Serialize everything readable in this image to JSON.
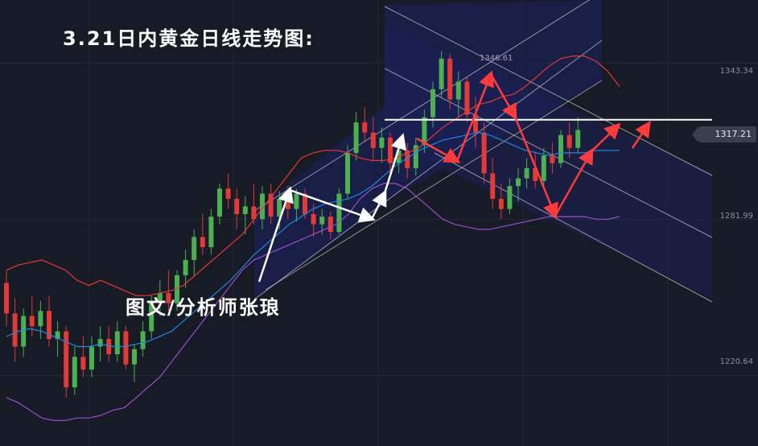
{
  "title": "3.21日内黄金日线走势图:",
  "author": "图文/分析师张琅",
  "colors": {
    "background": "#171b26",
    "up_candle": "#4caf50",
    "down_candle": "#e53935",
    "upper_band": "#e53935",
    "middle_band": "#1e88e5",
    "lower_band": "#9c4dcc",
    "white_arrow": "#ffffff",
    "red_arrow": "#ff3b3b",
    "channel_fill": "#1c2160"
  },
  "chart_data": {
    "type": "candlestick",
    "instrument": "黄金",
    "timeframe": "日线",
    "price_labels": [
      "1343.34",
      "1317.21",
      "1281.99",
      "1220.64"
    ],
    "current_price": "1317.21",
    "peak_label": "1346.61",
    "price_ticks": [
      1343.34,
      1281.99,
      1220.64
    ],
    "resistance_level": 1321,
    "ylim": [
      1193,
      1368
    ],
    "candles_ohlc": [
      [
        1257,
        1262,
        1240,
        1245
      ],
      [
        1245,
        1251,
        1226,
        1232
      ],
      [
        1232,
        1247,
        1228,
        1244
      ],
      [
        1244,
        1252,
        1236,
        1240
      ],
      [
        1240,
        1250,
        1235,
        1246
      ],
      [
        1246,
        1252,
        1232,
        1235
      ],
      [
        1235,
        1242,
        1228,
        1238
      ],
      [
        1238,
        1240,
        1212,
        1216
      ],
      [
        1216,
        1232,
        1213,
        1228
      ],
      [
        1228,
        1236,
        1220,
        1223
      ],
      [
        1223,
        1236,
        1220,
        1232
      ],
      [
        1232,
        1240,
        1226,
        1235
      ],
      [
        1235,
        1240,
        1226,
        1229
      ],
      [
        1229,
        1242,
        1226,
        1238
      ],
      [
        1238,
        1240,
        1223,
        1225
      ],
      [
        1225,
        1233,
        1218,
        1231
      ],
      [
        1231,
        1242,
        1228,
        1238
      ],
      [
        1238,
        1252,
        1235,
        1250
      ],
      [
        1250,
        1258,
        1244,
        1253
      ],
      [
        1253,
        1262,
        1246,
        1249
      ],
      [
        1249,
        1262,
        1246,
        1260
      ],
      [
        1260,
        1270,
        1255,
        1266
      ],
      [
        1266,
        1278,
        1260,
        1275
      ],
      [
        1275,
        1284,
        1268,
        1271
      ],
      [
        1271,
        1286,
        1268,
        1283
      ],
      [
        1283,
        1296,
        1280,
        1294
      ],
      [
        1294,
        1300,
        1286,
        1290
      ],
      [
        1290,
        1294,
        1278,
        1284
      ],
      [
        1284,
        1291,
        1276,
        1287
      ],
      [
        1287,
        1296,
        1280,
        1282
      ],
      [
        1282,
        1295,
        1278,
        1292
      ],
      [
        1292,
        1296,
        1280,
        1283
      ],
      [
        1283,
        1293,
        1278,
        1290
      ],
      [
        1290,
        1295,
        1282,
        1286
      ],
      [
        1286,
        1294,
        1281,
        1292
      ],
      [
        1292,
        1294,
        1282,
        1284
      ],
      [
        1284,
        1288,
        1275,
        1280
      ],
      [
        1280,
        1286,
        1276,
        1283
      ],
      [
        1283,
        1285,
        1274,
        1277
      ],
      [
        1277,
        1294,
        1276,
        1292
      ],
      [
        1292,
        1311,
        1290,
        1308
      ],
      [
        1308,
        1324,
        1305,
        1320
      ],
      [
        1320,
        1326,
        1312,
        1316
      ],
      [
        1316,
        1322,
        1305,
        1310
      ],
      [
        1310,
        1318,
        1304,
        1314
      ],
      [
        1314,
        1316,
        1300,
        1304
      ],
      [
        1304,
        1312,
        1300,
        1309
      ],
      [
        1309,
        1312,
        1298,
        1302
      ],
      [
        1302,
        1314,
        1299,
        1311
      ],
      [
        1311,
        1325,
        1308,
        1322
      ],
      [
        1322,
        1336,
        1318,
        1333
      ],
      [
        1333,
        1348,
        1330,
        1345
      ],
      [
        1345,
        1347,
        1325,
        1329
      ],
      [
        1329,
        1340,
        1322,
        1336
      ],
      [
        1336,
        1338,
        1320,
        1323
      ],
      [
        1323,
        1330,
        1310,
        1316
      ],
      [
        1316,
        1320,
        1296,
        1300
      ],
      [
        1300,
        1306,
        1286,
        1290
      ],
      [
        1290,
        1296,
        1282,
        1286
      ],
      [
        1286,
        1298,
        1284,
        1295
      ],
      [
        1295,
        1302,
        1289,
        1298
      ],
      [
        1298,
        1306,
        1294,
        1302
      ],
      [
        1302,
        1308,
        1294,
        1297
      ],
      [
        1297,
        1310,
        1294,
        1307
      ],
      [
        1307,
        1312,
        1300,
        1304
      ],
      [
        1304,
        1317,
        1302,
        1315
      ],
      [
        1315,
        1320,
        1306,
        1310
      ],
      [
        1310,
        1322,
        1308,
        1317
      ]
    ],
    "bollinger": {
      "upper": [
        1262,
        1264,
        1265,
        1266,
        1264,
        1262,
        1258,
        1256,
        1258,
        1256,
        1254,
        1252,
        1252,
        1253,
        1254,
        1256,
        1260,
        1264,
        1268,
        1272,
        1276,
        1282,
        1288,
        1294,
        1300,
        1306,
        1308,
        1309,
        1309,
        1308,
        1306,
        1305,
        1305,
        1306,
        1308,
        1310,
        1314,
        1318,
        1321,
        1324,
        1327,
        1328,
        1330,
        1331,
        1334,
        1338,
        1342,
        1345,
        1346,
        1346,
        1344,
        1340,
        1334
      ],
      "middle": [
        1236,
        1238,
        1239,
        1238,
        1236,
        1234,
        1232,
        1232,
        1233,
        1232,
        1232,
        1233,
        1234,
        1236,
        1238,
        1242,
        1246,
        1250,
        1254,
        1258,
        1263,
        1268,
        1272,
        1276,
        1280,
        1283,
        1286,
        1288,
        1289,
        1290,
        1292,
        1295,
        1299,
        1303,
        1306,
        1309,
        1311,
        1313,
        1314,
        1315,
        1316,
        1315,
        1313,
        1311,
        1309,
        1308,
        1307,
        1308,
        1308,
        1308,
        1309,
        1309,
        1309
      ],
      "lower": [
        1212,
        1210,
        1207,
        1204,
        1203,
        1203,
        1204,
        1204,
        1205,
        1207,
        1208,
        1212,
        1216,
        1220,
        1226,
        1232,
        1238,
        1244,
        1250,
        1256,
        1262,
        1266,
        1268,
        1270,
        1272,
        1274,
        1276,
        1278,
        1280,
        1284,
        1290,
        1294,
        1296,
        1296,
        1294,
        1290,
        1286,
        1282,
        1280,
        1279,
        1278,
        1278,
        1279,
        1280,
        1281,
        1282,
        1283,
        1283,
        1283,
        1283,
        1282,
        1282,
        1283
      ]
    },
    "xlabel": "",
    "ylabel": ""
  }
}
